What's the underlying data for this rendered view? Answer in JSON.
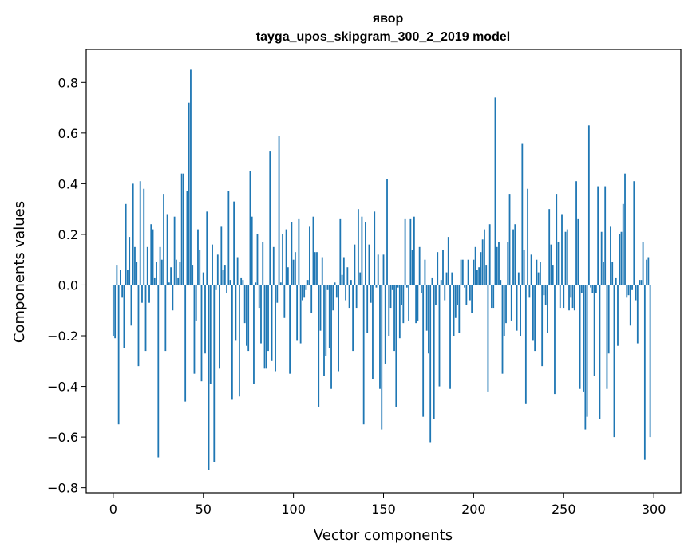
{
  "chart_data": {
    "type": "bar",
    "title": "явор",
    "subtitle": "tayga_upos_skipgram_300_2_2019 model",
    "xlabel": "Vector components",
    "ylabel": "Components values",
    "xlim": [
      -15,
      315
    ],
    "ylim": [
      -0.82,
      0.93
    ],
    "xticks": [
      0,
      50,
      100,
      150,
      200,
      250,
      300
    ],
    "xtick_labels": [
      "0",
      "50",
      "100",
      "150",
      "200",
      "250",
      "300"
    ],
    "yticks": [
      -0.8,
      -0.6,
      -0.4,
      -0.2,
      0.0,
      0.2,
      0.4,
      0.6,
      0.8
    ],
    "ytick_labels": [
      "−0.8",
      "−0.6",
      "−0.4",
      "−0.2",
      "0.0",
      "0.2",
      "0.4",
      "0.6",
      "0.8"
    ],
    "bar_color": "#1f77b4",
    "grid": false,
    "values": [
      -0.2,
      -0.21,
      0.08,
      -0.55,
      0.06,
      -0.05,
      -0.25,
      0.32,
      0.06,
      0.19,
      -0.16,
      0.4,
      0.15,
      0.09,
      -0.32,
      0.41,
      -0.07,
      0.38,
      -0.26,
      0.15,
      -0.07,
      0.24,
      0.22,
      0.03,
      0.09,
      -0.68,
      0.15,
      0.1,
      0.36,
      -0.26,
      0.28,
      0.01,
      0.07,
      -0.1,
      0.27,
      0.1,
      0.03,
      0.09,
      0.44,
      0.44,
      -0.46,
      0.37,
      0.72,
      0.85,
      0.08,
      -0.35,
      -0.14,
      0.22,
      0.14,
      -0.38,
      0.05,
      -0.27,
      0.29,
      -0.73,
      -0.39,
      0.16,
      -0.7,
      -0.02,
      0.12,
      -0.33,
      0.23,
      0.06,
      0.08,
      -0.03,
      0.37,
      0.02,
      -0.45,
      0.33,
      -0.22,
      0.11,
      -0.44,
      0.03,
      0.02,
      -0.15,
      -0.24,
      -0.26,
      0.45,
      0.27,
      -0.39,
      0.01,
      0.2,
      -0.09,
      -0.23,
      0.17,
      -0.33,
      -0.33,
      -0.26,
      0.53,
      -0.3,
      0.15,
      -0.34,
      -0.07,
      0.59,
      0.01,
      0.2,
      -0.13,
      0.22,
      0.07,
      -0.35,
      0.25,
      0.1,
      0.13,
      -0.22,
      0.26,
      -0.23,
      -0.06,
      -0.05,
      -0.02,
      0.02,
      0.23,
      -0.11,
      0.27,
      0.13,
      0.13,
      -0.48,
      -0.18,
      0.11,
      -0.36,
      -0.28,
      -0.02,
      -0.25,
      -0.41,
      -0.1,
      0.01,
      -0.05,
      -0.34,
      0.26,
      0.04,
      0.11,
      -0.06,
      0.07,
      -0.09,
      0.02,
      -0.26,
      0.16,
      -0.09,
      0.3,
      0.05,
      0.27,
      -0.55,
      0.25,
      -0.19,
      0.16,
      -0.07,
      -0.37,
      0.29,
      -0.01,
      0.12,
      -0.41,
      -0.57,
      0.12,
      -0.31,
      0.42,
      -0.2,
      -0.09,
      -0.02,
      -0.26,
      -0.48,
      -0.01,
      -0.21,
      -0.08,
      -0.15,
      0.26,
      -0.01,
      -0.14,
      0.26,
      0.14,
      0.27,
      -0.15,
      -0.14,
      0.15,
      -0.03,
      -0.52,
      0.1,
      -0.18,
      -0.27,
      -0.62,
      0.03,
      -0.53,
      -0.08,
      0.13,
      -0.4,
      0.02,
      0.14,
      -0.06,
      0.05,
      0.19,
      -0.41,
      0.05,
      -0.2,
      -0.13,
      -0.08,
      -0.19,
      0.1,
      0.1,
      -0.01,
      -0.08,
      0.1,
      -0.06,
      -0.11,
      0.1,
      0.15,
      0.06,
      0.07,
      0.13,
      0.18,
      0.22,
      0.08,
      -0.42,
      0.24,
      -0.09,
      -0.09,
      0.74,
      0.15,
      0.17,
      0.02,
      -0.35,
      -0.2,
      -0.15,
      0.17,
      0.36,
      -0.14,
      0.22,
      0.24,
      -0.18,
      0.05,
      -0.2,
      0.56,
      0.14,
      -0.47,
      0.38,
      -0.05,
      0.12,
      -0.22,
      -0.26,
      0.1,
      0.05,
      0.09,
      -0.32,
      -0.04,
      -0.08,
      -0.19,
      0.3,
      0.16,
      0.08,
      -0.43,
      0.36,
      0.17,
      -0.09,
      0.28,
      -0.09,
      0.21,
      0.22,
      -0.1,
      -0.05,
      -0.09,
      -0.1,
      0.41,
      0.26,
      -0.41,
      -0.03,
      -0.42,
      -0.57,
      -0.52,
      0.63,
      -0.01,
      -0.03,
      -0.36,
      -0.03,
      0.39,
      -0.53,
      0.21,
      0.09,
      0.39,
      -0.41,
      -0.27,
      0.23,
      0.09,
      -0.6,
      0.03,
      -0.24,
      0.2,
      0.21,
      0.32,
      0.44,
      -0.05,
      -0.04,
      -0.16,
      -0.02,
      0.41,
      -0.06,
      -0.23,
      0.02,
      0.02,
      0.17,
      -0.69,
      0.1,
      0.11,
      -0.6
    ]
  }
}
